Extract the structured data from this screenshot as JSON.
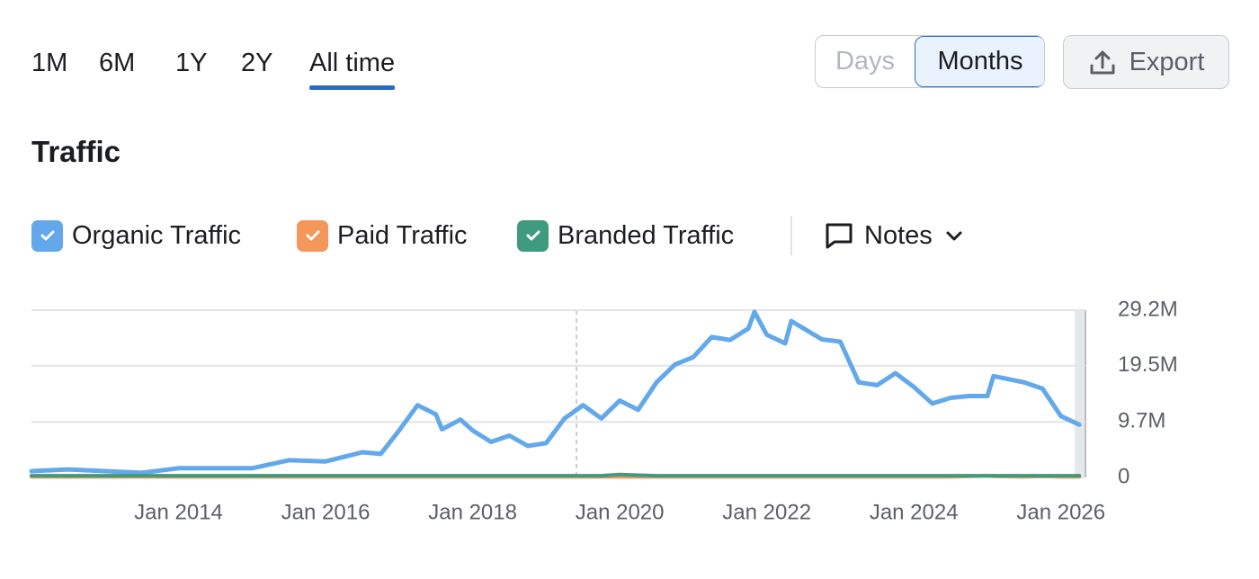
{
  "tabs": [
    "1M",
    "6M",
    "1Y",
    "2Y",
    "All time"
  ],
  "active_tab": 4,
  "view_toggle": [
    "Days",
    "Months"
  ],
  "active_view": 1,
  "export": "Export",
  "section_title": "Traffic",
  "notes": "Notes",
  "chart_data": {
    "type": "line",
    "x": [
      "2012-01",
      "2012-07",
      "2013-01",
      "2013-07",
      "2014-01",
      "2014-07",
      "2015-01",
      "2015-07",
      "2016-01",
      "2016-07",
      "2016-10",
      "2017-01",
      "2017-04",
      "2017-07",
      "2017-08",
      "2017-11",
      "2018-01",
      "2018-04",
      "2018-07",
      "2018-10",
      "2019-01",
      "2019-04",
      "2019-07",
      "2019-10",
      "2020-01",
      "2020-04",
      "2020-07",
      "2020-10",
      "2021-01",
      "2021-04",
      "2021-07",
      "2021-10",
      "2021-11",
      "2022-01",
      "2022-04",
      "2022-05",
      "2022-10",
      "2023-01",
      "2023-04",
      "2023-07",
      "2023-10",
      "2024-01",
      "2024-04",
      "2024-07",
      "2024-10",
      "2025-01",
      "2025-02",
      "2025-07",
      "2025-10",
      "2026-01",
      "2026-04"
    ],
    "series": [
      {
        "name": "Organic Traffic",
        "color": "#62a8ea",
        "values": [
          1100000,
          1400000,
          1100000,
          800000,
          1600000,
          1600000,
          1600000,
          3000000,
          2800000,
          4400000,
          4100000,
          8200000,
          12600000,
          11000000,
          8400000,
          10100000,
          8200000,
          6200000,
          7300000,
          5500000,
          6000000,
          10300000,
          12600000,
          10300000,
          13400000,
          11800000,
          16600000,
          19700000,
          21000000,
          24500000,
          24000000,
          26000000,
          28900000,
          24900000,
          23400000,
          27300000,
          24100000,
          23700000,
          16600000,
          16100000,
          18200000,
          15800000,
          12900000,
          13900000,
          14200000,
          14200000,
          17700000,
          16600000,
          15500000,
          10700000,
          9200000
        ]
      },
      {
        "name": "Paid Traffic",
        "color": "#f3975b",
        "values": [
          100000,
          100000,
          100000,
          100000,
          100000,
          100000,
          100000,
          100000,
          100000,
          100000,
          100000,
          100000,
          100000,
          100000,
          100000,
          100000,
          100000,
          100000,
          100000,
          100000,
          100000,
          100000,
          100000,
          100000,
          100000,
          100000,
          100000,
          100000,
          100000,
          100000,
          100000,
          100000,
          100000,
          100000,
          100000,
          100000,
          100000,
          100000,
          100000,
          100000,
          100000,
          100000,
          100000,
          100000,
          200000,
          300000,
          200000,
          100000,
          200000,
          100000,
          100000
        ]
      },
      {
        "name": "Branded Traffic",
        "color": "#409a7e",
        "values": [
          300000,
          300000,
          300000,
          300000,
          300000,
          300000,
          300000,
          300000,
          300000,
          300000,
          300000,
          300000,
          300000,
          300000,
          300000,
          300000,
          300000,
          300000,
          300000,
          300000,
          300000,
          300000,
          300000,
          300000,
          500000,
          400000,
          300000,
          300000,
          300000,
          300000,
          300000,
          300000,
          300000,
          300000,
          300000,
          300000,
          300000,
          300000,
          300000,
          300000,
          300000,
          300000,
          300000,
          300000,
          300000,
          300000,
          300000,
          300000,
          300000,
          300000,
          300000
        ]
      }
    ],
    "xlim": [
      "2012-01",
      "2026-05"
    ],
    "xticks": [
      {
        "value": "2014-01",
        "label": "Jan 2014"
      },
      {
        "value": "2016-01",
        "label": "Jan 2016"
      },
      {
        "value": "2018-01",
        "label": "Jan 2018"
      },
      {
        "value": "2020-01",
        "label": "Jan 2020"
      },
      {
        "value": "2022-01",
        "label": "Jan 2022"
      },
      {
        "value": "2024-01",
        "label": "Jan 2024"
      },
      {
        "value": "2026-01",
        "label": "Jan 2026"
      }
    ],
    "ylim": [
      0,
      29200000
    ],
    "yticks": [
      0,
      {
        "value": 9700000,
        "label": "9.7M"
      },
      {
        "value": 19500000,
        "label": "19.5M"
      },
      {
        "value": 29200000,
        "label": "29.2M"
      }
    ],
    "grid": true
  }
}
